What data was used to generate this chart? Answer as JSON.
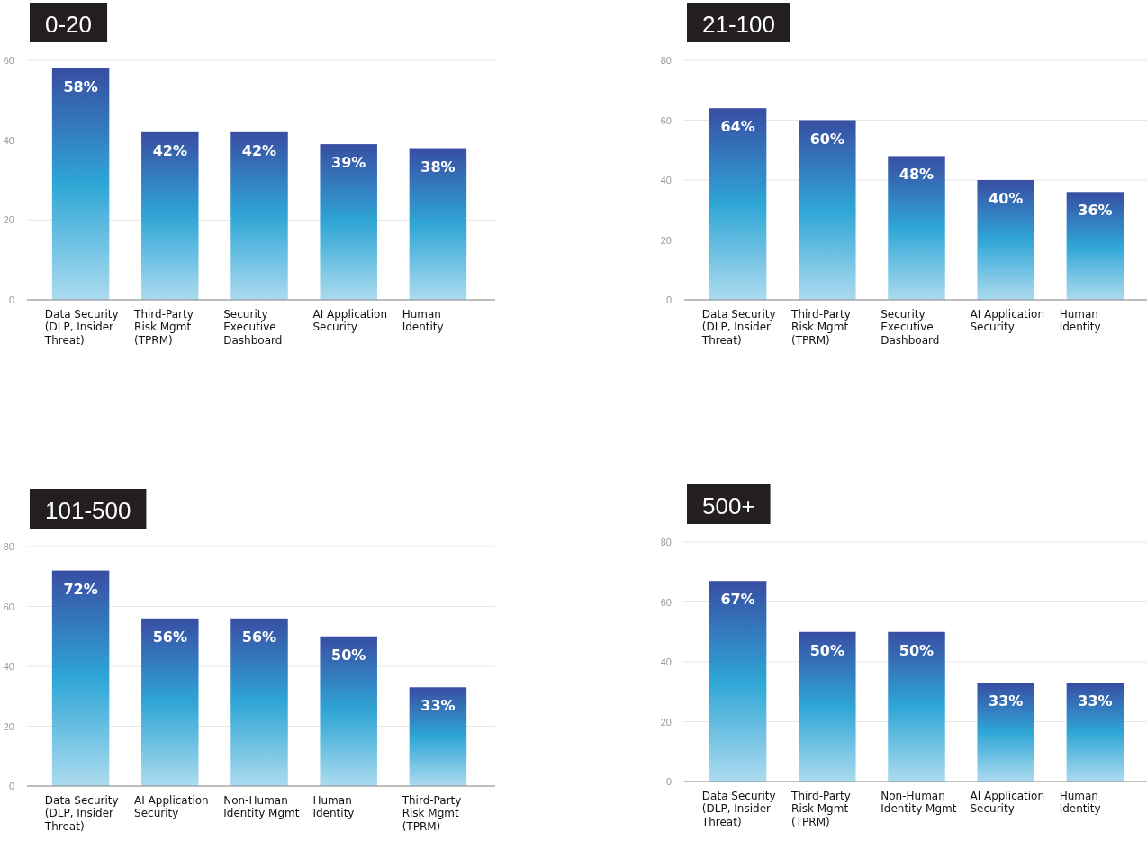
{
  "chart_data": [
    {
      "type": "bar",
      "title": "0-20",
      "categories": [
        "Data Security (DLP, Insider Threat)",
        "Third-Party Risk Mgmt (TPRM)",
        "Security Executive Dashboard",
        "AI Application Security",
        "Human Identity"
      ],
      "values": [
        58,
        42,
        42,
        39,
        38
      ],
      "value_labels": [
        "58%",
        "42%",
        "42%",
        "39%",
        "38%"
      ],
      "color": "#2fa6d6",
      "ylim": [
        0,
        60
      ],
      "yticks": [
        0,
        20,
        40,
        60
      ],
      "grid": "y"
    },
    {
      "type": "bar",
      "title": "21-100",
      "categories": [
        "Data Security (DLP, Insider Threat)",
        "Third-Party Risk Mgmt (TPRM)",
        "Security Executive Dashboard",
        "AI Application Security",
        "Human Identity"
      ],
      "values": [
        64,
        60,
        48,
        40,
        36
      ],
      "value_labels": [
        "64%",
        "60%",
        "48%",
        "40%",
        "36%"
      ],
      "color": "#2fa6d6",
      "ylim": [
        0,
        80
      ],
      "yticks": [
        0,
        20,
        40,
        60,
        80
      ],
      "grid": "y"
    },
    {
      "type": "bar",
      "title": "101-500",
      "categories": [
        "Data Security (DLP, Insider Threat)",
        "AI Application Security",
        "Non-Human Identity Mgmt",
        "Human Identity",
        "Third-Party Risk Mgmt (TPRM)"
      ],
      "values": [
        72,
        56,
        56,
        50,
        33
      ],
      "value_labels": [
        "72%",
        "56%",
        "56%",
        "50%",
        "33%"
      ],
      "color": "#2fa6d6",
      "ylim": [
        0,
        80
      ],
      "yticks": [
        0,
        20,
        40,
        60,
        80
      ],
      "grid": "y"
    },
    {
      "type": "bar",
      "title": "500+",
      "categories": [
        "Data Security (DLP, Insider Threat)",
        "Third-Party Risk Mgmt (TPRM)",
        "Non-Human Identity Mgmt",
        "AI Application Security",
        "Human Identity"
      ],
      "values": [
        67,
        50,
        50,
        33,
        33
      ],
      "value_labels": [
        "67%",
        "50%",
        "50%",
        "33%",
        "33%"
      ],
      "color": "#2fa6d6",
      "ylim": [
        0,
        80
      ],
      "yticks": [
        0,
        20,
        40,
        60,
        80
      ],
      "grid": "y"
    }
  ]
}
